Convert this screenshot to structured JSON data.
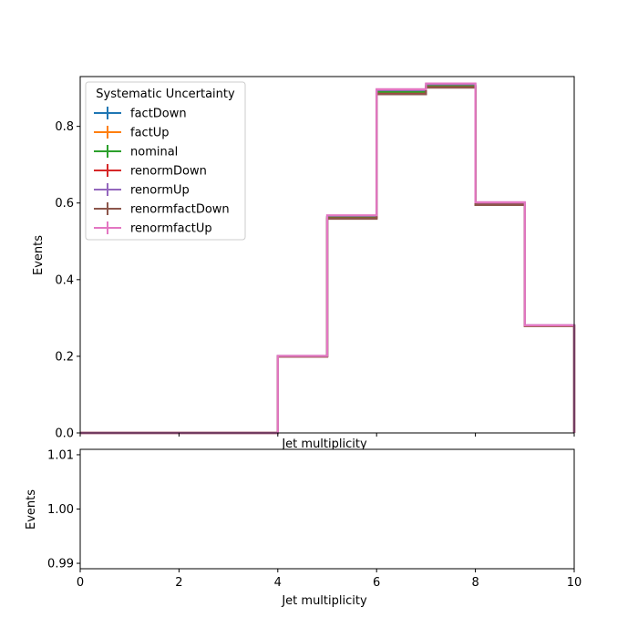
{
  "chart_data": [
    {
      "type": "line",
      "style": "step",
      "xlabel": "Jet multiplicity",
      "ylabel": "Events",
      "xlim": [
        0,
        10
      ],
      "ylim": [
        0,
        0.93
      ],
      "x_ticks": [
        0,
        2,
        4,
        6,
        8,
        10
      ],
      "y_ticks": [
        0.0,
        0.2,
        0.4,
        0.6,
        0.8
      ],
      "y_tick_labels": [
        "0.0",
        "0.2",
        "0.4",
        "0.6",
        "0.8"
      ],
      "bin_edges": [
        0,
        1,
        2,
        3,
        4,
        5,
        6,
        7,
        8,
        9,
        10
      ],
      "legend": {
        "title": "Systematic Uncertainty",
        "placement": "upper-left"
      },
      "series": [
        {
          "name": "factDown",
          "color": "#1f77b4",
          "values": [
            0,
            0,
            0,
            0,
            0.2,
            0.563,
            0.89,
            0.905,
            0.598,
            0.28
          ]
        },
        {
          "name": "factUp",
          "color": "#ff7f0e",
          "values": [
            0,
            0,
            0,
            0,
            0.2,
            0.563,
            0.89,
            0.905,
            0.598,
            0.28
          ]
        },
        {
          "name": "nominal",
          "color": "#2ca02c",
          "values": [
            0,
            0,
            0,
            0,
            0.2,
            0.563,
            0.89,
            0.905,
            0.598,
            0.28
          ]
        },
        {
          "name": "renormDown",
          "color": "#d62728",
          "values": [
            0,
            0,
            0,
            0,
            0.199,
            0.56,
            0.885,
            0.902,
            0.596,
            0.279
          ]
        },
        {
          "name": "renormUp",
          "color": "#9467bd",
          "values": [
            0,
            0,
            0,
            0,
            0.201,
            0.567,
            0.895,
            0.91,
            0.601,
            0.281
          ]
        },
        {
          "name": "renormfactDown",
          "color": "#8c564b",
          "values": [
            0,
            0,
            0,
            0,
            0.199,
            0.559,
            0.884,
            0.901,
            0.595,
            0.279
          ]
        },
        {
          "name": "renormfactUp",
          "color": "#e377c2",
          "values": [
            0,
            0,
            0,
            0,
            0.201,
            0.568,
            0.897,
            0.912,
            0.602,
            0.281
          ]
        }
      ]
    },
    {
      "type": "line",
      "xlabel": "Jet multiplicity",
      "ylabel": "Events",
      "xlim": [
        0,
        10
      ],
      "ylim": [
        0.989,
        1.011
      ],
      "x_ticks": [
        0,
        2,
        4,
        6,
        8,
        10
      ],
      "y_ticks": [
        0.99,
        1.0,
        1.01
      ],
      "y_tick_labels": [
        "0.99",
        "1.00",
        "1.01"
      ]
    }
  ]
}
